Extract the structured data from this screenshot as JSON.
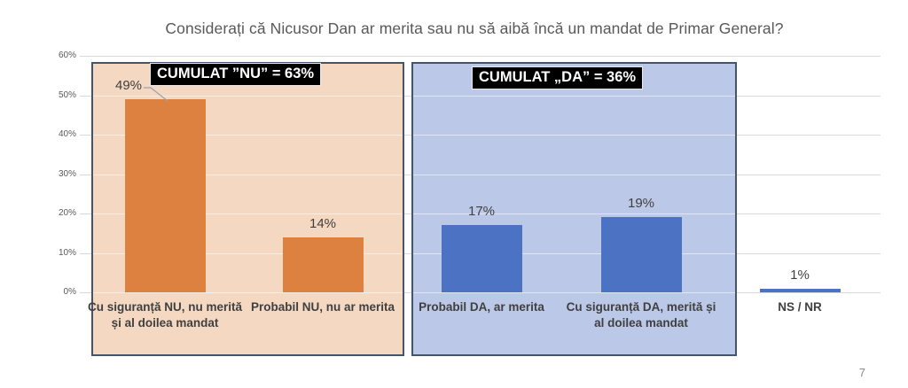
{
  "title": "Considerați că Nicusor Dan ar merita sau nu să aibă încă un mandat de Primar General?",
  "page": {
    "page_number": "7"
  },
  "chart_data": {
    "type": "bar",
    "title": "Considerați că Nicusor Dan ar merita sau nu să aibă încă un mandat de Primar General?",
    "categories": [
      "Cu siguranță NU, nu merită și al doilea mandat",
      "Probabil NU, nu ar merita",
      "Probabil DA, ar merita",
      "Cu siguranță DA, merită și al doilea mandat",
      "NS / NR"
    ],
    "values": [
      49,
      14,
      17,
      19,
      1
    ],
    "data_labels": [
      "49%",
      "14%",
      "17%",
      "19%",
      "1%"
    ],
    "xlabel": "",
    "ylabel": "",
    "ylim": [
      0,
      60
    ],
    "yticks": [
      "0%",
      "10%",
      "20%",
      "30%",
      "40%",
      "50%",
      "60%"
    ],
    "grid": true,
    "legend": "none",
    "annotations": [
      {
        "text": "CUMULAT ”NU” = 63%",
        "group": "NU",
        "value": "63%"
      },
      {
        "text": "CUMULAT „DA” = 36%",
        "group": "DA",
        "value": "36%"
      }
    ],
    "groups": [
      {
        "name": "NU",
        "category_indices": [
          0,
          1
        ],
        "bar_color": "#dd8141",
        "panel_color": "#f4d8c2"
      },
      {
        "name": "DA",
        "category_indices": [
          2,
          3
        ],
        "bar_color": "#4c72c4",
        "panel_color": "#bcc8e8"
      }
    ],
    "colors": {
      "bar_nu": "#dd8141",
      "bar_da": "#4c72c4",
      "panel_nu_bg": "#f4d8c2",
      "panel_da_bg": "#bcc8e8",
      "panel_border": "#44546a",
      "gridline": "#d9d9d9",
      "annotation_bg": "#000000",
      "annotation_text": "#ffffff",
      "axis_text": "#595959",
      "label_text": "#404040"
    }
  }
}
